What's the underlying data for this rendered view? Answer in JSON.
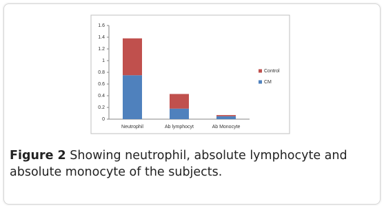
{
  "chart_data": {
    "type": "stacked_bar",
    "categories": [
      "Neutrophil",
      "Ab lymphocyt",
      "Ab Monocyte"
    ],
    "series": [
      {
        "name": "CM",
        "color": "#4f81bd",
        "values": [
          0.75,
          0.18,
          0.05
        ]
      },
      {
        "name": "Control",
        "color": "#c0504d",
        "values": [
          0.63,
          0.25,
          0.02
        ]
      }
    ],
    "ylim": [
      0,
      1.6
    ],
    "yticks": [
      0,
      0.2,
      0.4,
      0.6,
      0.8,
      1,
      1.2,
      1.4,
      1.6
    ],
    "grid": false,
    "legend": "right"
  },
  "caption": {
    "label": "Figure 2",
    "text": "Showing neutrophil, absolute lymphocyte and absolute monocyte of the subjects."
  }
}
